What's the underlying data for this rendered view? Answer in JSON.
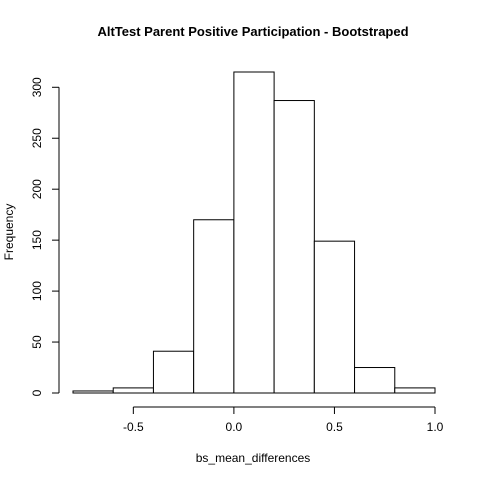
{
  "chart_data": {
    "type": "bar",
    "title": "AltTest Parent Positive Participation - Bootstraped",
    "xlabel": "bs_mean_differences",
    "ylabel": "Frequency",
    "bins": [
      {
        "from": -0.8,
        "to": -0.6,
        "count": 2
      },
      {
        "from": -0.6,
        "to": -0.4,
        "count": 5
      },
      {
        "from": -0.4,
        "to": -0.2,
        "count": 41
      },
      {
        "from": -0.2,
        "to": 0.0,
        "count": 170
      },
      {
        "from": 0.0,
        "to": 0.2,
        "count": 315
      },
      {
        "from": 0.2,
        "to": 0.4,
        "count": 287
      },
      {
        "from": 0.4,
        "to": 0.6,
        "count": 149
      },
      {
        "from": 0.6,
        "to": 0.8,
        "count": 25
      },
      {
        "from": 0.8,
        "to": 1.0,
        "count": 5
      }
    ],
    "x_ticks": [
      -0.5,
      0.0,
      0.5,
      1.0
    ],
    "x_tick_labels": [
      "-0.5",
      "0.0",
      "0.5",
      "1.0"
    ],
    "y_ticks": [
      0,
      50,
      100,
      150,
      200,
      250,
      300
    ],
    "y_tick_labels": [
      "0",
      "50",
      "100",
      "150",
      "200",
      "250",
      "300"
    ],
    "xlim": [
      -0.8,
      1.0
    ],
    "ylim": [
      0,
      315
    ],
    "grid": false,
    "legend": "none"
  }
}
